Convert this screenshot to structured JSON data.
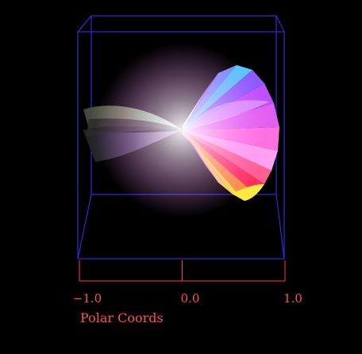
{
  "chart_data": {
    "type": "surface-3d",
    "title": "",
    "xlabel": "Polar Coords",
    "x_ticks": [
      -1.0,
      0.0,
      1.0
    ],
    "x_tick_labels": [
      "−1.0",
      "0.0",
      "1.0"
    ],
    "xlim": [
      -1.0,
      1.0
    ],
    "grid": false,
    "legend": "none",
    "surface": {
      "shape": "twisted polar surface with a pinch point near x = 0",
      "colormap": "rainbow hue"
    }
  },
  "colors": {
    "background": "#000000",
    "bounding_box": "#3333ff",
    "axis": "#ff3c3c",
    "labels": "#ff5050"
  }
}
